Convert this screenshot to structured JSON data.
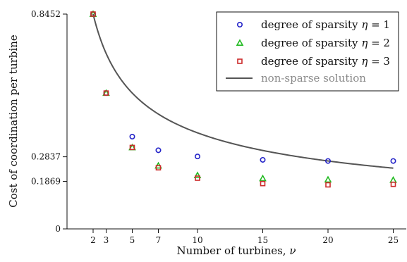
{
  "chart_data": {
    "type": "scatter",
    "title": "",
    "xlabel": "Number of turbines, ",
    "xlabel_symbol": "ν",
    "ylabel": "Cost of coordination per turbine",
    "xlim": [
      0,
      26
    ],
    "ylim": [
      0,
      0.8452
    ],
    "xticks": [
      2,
      3,
      5,
      7,
      10,
      15,
      20,
      25
    ],
    "yticks": [
      0,
      0.1869,
      0.2837,
      0.8452
    ],
    "ytick_labels": [
      "0",
      "0.1869",
      "0.2837",
      "0.8452"
    ],
    "grid": false,
    "legend_position": "top-right",
    "series": [
      {
        "name": "degree of sparsity η = 1",
        "legend_prefix": "degree of sparsity ",
        "legend_symbol": "η",
        "legend_suffix": " = 1",
        "marker": "circle",
        "color": "#2323c8",
        "x": [
          2,
          3,
          5,
          7,
          10,
          15,
          20,
          25
        ],
        "y": [
          0.8452,
          0.5345,
          0.363,
          0.3095,
          0.285,
          0.2717,
          0.2672,
          0.2672
        ]
      },
      {
        "name": "degree of sparsity η = 2",
        "legend_prefix": "degree of sparsity ",
        "legend_symbol": "η",
        "legend_suffix": " = 2",
        "marker": "triangle",
        "color": "#22bb22",
        "x": [
          2,
          3,
          5,
          7,
          10,
          15,
          20,
          25
        ],
        "y": [
          0.8452,
          0.5345,
          0.3204,
          0.2485,
          0.2105,
          0.1985,
          0.1935,
          0.1922
        ]
      },
      {
        "name": "degree of sparsity η = 3",
        "legend_prefix": "degree of sparsity ",
        "legend_symbol": "η",
        "legend_suffix": " = 3",
        "marker": "square",
        "color": "#cc2a2a",
        "x": [
          2,
          3,
          5,
          7,
          10,
          15,
          20,
          25
        ],
        "y": [
          0.8452,
          0.5345,
          0.3204,
          0.2405,
          0.1995,
          0.1783,
          0.1733,
          0.1755
        ]
      }
    ],
    "line": {
      "name": "non-sparse solution",
      "color": "#555555",
      "formula_note": "approximately 1.19527 / sqrt(v)",
      "x_start": 2,
      "x_end": 25
    }
  }
}
